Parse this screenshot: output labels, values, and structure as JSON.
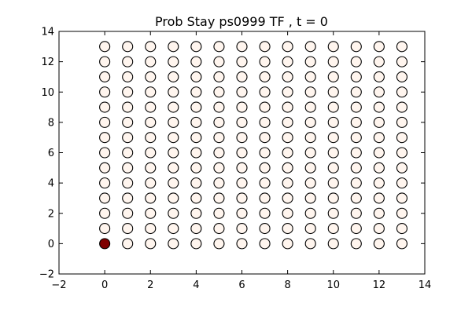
{
  "chart_data": {
    "type": "scatter",
    "title": "Prob Stay ps0999 TF , t = 0",
    "xlabel": "",
    "ylabel": "",
    "xlim": [
      -2,
      14
    ],
    "ylim": [
      -2,
      14
    ],
    "xticks": [
      -2,
      0,
      2,
      4,
      6,
      8,
      10,
      12,
      14
    ],
    "yticks": [
      -2,
      0,
      2,
      4,
      6,
      8,
      10,
      12,
      14
    ],
    "grid": false,
    "grid_x": [
      0,
      1,
      2,
      3,
      4,
      5,
      6,
      7,
      8,
      9,
      10,
      11,
      12,
      13
    ],
    "grid_y": [
      0,
      1,
      2,
      3,
      4,
      5,
      6,
      7,
      8,
      9,
      10,
      11,
      12,
      13
    ],
    "default_value": 0,
    "highlight_points": [
      {
        "x": 0,
        "y": 0,
        "value": 1
      }
    ],
    "colors": {
      "low": "#fff5ee",
      "high": "#7f0000",
      "edge": "#000000"
    }
  }
}
